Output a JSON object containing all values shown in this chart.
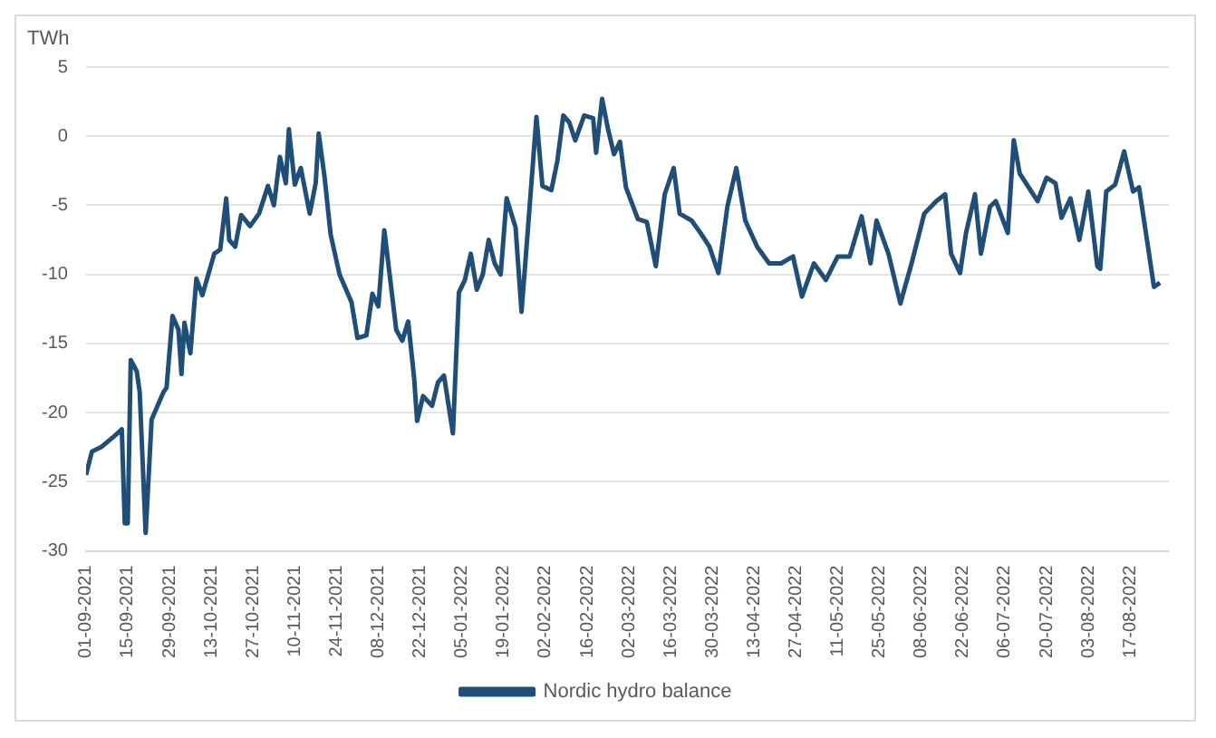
{
  "chart_data": {
    "type": "line",
    "ylabel": "TWh",
    "legend": "bottom",
    "grid": "y",
    "marker": "none",
    "line_style": "solid",
    "xlim": [
      "2021-09-01",
      "2022-08-30"
    ],
    "xticks": [
      {
        "value": "2021-09-01",
        "label": "01-09-2021"
      },
      {
        "value": "2021-09-15",
        "label": "15-09-2021"
      },
      {
        "value": "2021-09-29",
        "label": "29-09-2021"
      },
      {
        "value": "2021-10-13",
        "label": "13-10-2021"
      },
      {
        "value": "2021-10-27",
        "label": "27-10-2021"
      },
      {
        "value": "2021-11-10",
        "label": "10-11-2021"
      },
      {
        "value": "2021-11-24",
        "label": "24-11-2021"
      },
      {
        "value": "2021-12-08",
        "label": "08-12-2021"
      },
      {
        "value": "2021-12-22",
        "label": "22-12-2021"
      },
      {
        "value": "2022-01-05",
        "label": "05-01-2022"
      },
      {
        "value": "2022-01-19",
        "label": "19-01-2022"
      },
      {
        "value": "2022-02-02",
        "label": "02-02-2022"
      },
      {
        "value": "2022-02-16",
        "label": "16-02-2022"
      },
      {
        "value": "2022-03-02",
        "label": "02-03-2022"
      },
      {
        "value": "2022-03-16",
        "label": "16-03-2022"
      },
      {
        "value": "2022-03-30",
        "label": "30-03-2022"
      },
      {
        "value": "2022-04-13",
        "label": "13-04-2022"
      },
      {
        "value": "2022-04-27",
        "label": "27-04-2022"
      },
      {
        "value": "2022-05-11",
        "label": "11-05-2022"
      },
      {
        "value": "2022-05-25",
        "label": "25-05-2022"
      },
      {
        "value": "2022-06-08",
        "label": "08-06-2022"
      },
      {
        "value": "2022-06-22",
        "label": "22-06-2022"
      },
      {
        "value": "2022-07-06",
        "label": "06-07-2022"
      },
      {
        "value": "2022-07-20",
        "label": "20-07-2022"
      },
      {
        "value": "2022-08-03",
        "label": "03-08-2022"
      },
      {
        "value": "2022-08-17",
        "label": "17-08-2022"
      }
    ],
    "ylim": [
      -30,
      5
    ],
    "yticks": [
      -30,
      -25,
      -20,
      -15,
      -10,
      -5,
      0,
      5
    ],
    "x": [
      "2021-09-01",
      "2021-09-03",
      "2021-09-06",
      "2021-09-11",
      "2021-09-13",
      "2021-09-14",
      "2021-09-15",
      "2021-09-16",
      "2021-09-18",
      "2021-09-19",
      "2021-09-21",
      "2021-09-23",
      "2021-09-25",
      "2021-09-27",
      "2021-09-28",
      "2021-09-30",
      "2021-10-02",
      "2021-10-03",
      "2021-10-04",
      "2021-10-06",
      "2021-10-08",
      "2021-10-10",
      "2021-10-12",
      "2021-10-14",
      "2021-10-16",
      "2021-10-18",
      "2021-10-19",
      "2021-10-21",
      "2021-10-23",
      "2021-10-26",
      "2021-10-29",
      "2021-11-01",
      "2021-11-03",
      "2021-11-05",
      "2021-11-07",
      "2021-11-08",
      "2021-11-10",
      "2021-11-12",
      "2021-11-15",
      "2021-11-17",
      "2021-11-18",
      "2021-11-20",
      "2021-11-22",
      "2021-11-25",
      "2021-11-27",
      "2021-11-29",
      "2021-12-01",
      "2021-12-04",
      "2021-12-06",
      "2021-12-08",
      "2021-12-10",
      "2021-12-12",
      "2021-12-14",
      "2021-12-16",
      "2021-12-18",
      "2021-12-20",
      "2021-12-21",
      "2021-12-23",
      "2021-12-26",
      "2021-12-28",
      "2021-12-30",
      "2022-01-02",
      "2022-01-04",
      "2022-01-06",
      "2022-01-08",
      "2022-01-10",
      "2022-01-12",
      "2022-01-14",
      "2022-01-16",
      "2022-01-18",
      "2022-01-20",
      "2022-01-23",
      "2022-01-25",
      "2022-01-27",
      "2022-01-30",
      "2022-02-01",
      "2022-02-04",
      "2022-02-06",
      "2022-02-08",
      "2022-02-10",
      "2022-02-12",
      "2022-02-15",
      "2022-02-18",
      "2022-02-19",
      "2022-02-21",
      "2022-02-23",
      "2022-02-25",
      "2022-02-27",
      "2022-03-01",
      "2022-03-05",
      "2022-03-08",
      "2022-03-11",
      "2022-03-14",
      "2022-03-17",
      "2022-03-19",
      "2022-03-23",
      "2022-03-26",
      "2022-03-29",
      "2022-04-01",
      "2022-04-04",
      "2022-04-07",
      "2022-04-10",
      "2022-04-14",
      "2022-04-18",
      "2022-04-22",
      "2022-04-26",
      "2022-04-29",
      "2022-05-03",
      "2022-05-07",
      "2022-05-11",
      "2022-05-15",
      "2022-05-19",
      "2022-05-22",
      "2022-05-24",
      "2022-05-28",
      "2022-06-01",
      "2022-06-05",
      "2022-06-09",
      "2022-06-13",
      "2022-06-16",
      "2022-06-18",
      "2022-06-21",
      "2022-06-23",
      "2022-06-26",
      "2022-06-28",
      "2022-07-01",
      "2022-07-03",
      "2022-07-07",
      "2022-07-09",
      "2022-07-11",
      "2022-07-14",
      "2022-07-17",
      "2022-07-20",
      "2022-07-23",
      "2022-07-25",
      "2022-07-28",
      "2022-07-31",
      "2022-08-03",
      "2022-08-06",
      "2022-08-07",
      "2022-08-09",
      "2022-08-12",
      "2022-08-15",
      "2022-08-18",
      "2022-08-20",
      "2022-08-23",
      "2022-08-25",
      "2022-08-27"
    ],
    "series": [
      {
        "name": "Nordic hydro balance",
        "color": "#1f4e79",
        "values": [
          -24.5,
          -22.8,
          -22.5,
          -21.6,
          -21.2,
          -28,
          -28,
          -16.2,
          -17,
          -18.5,
          -28.7,
          -20.5,
          -19.5,
          -18.5,
          -18.2,
          -13,
          -14,
          -17.2,
          -13.5,
          -15.7,
          -10.3,
          -11.5,
          -10,
          -8.5,
          -8.2,
          -4.5,
          -7.5,
          -8,
          -5.7,
          -6.5,
          -5.6,
          -3.6,
          -5,
          -1.5,
          -3.4,
          0.5,
          -3.5,
          -2.3,
          -5.6,
          -3.4,
          0.2,
          -3,
          -7.1,
          -10,
          -11,
          -12,
          -14.6,
          -14.4,
          -11.4,
          -12.3,
          -6.8,
          -10.4,
          -14,
          -14.8,
          -13.4,
          -17.5,
          -20.6,
          -18.8,
          -19.5,
          -17.8,
          -17.3,
          -21.5,
          -11.3,
          -10.4,
          -8.5,
          -11.1,
          -10,
          -7.5,
          -9.2,
          -10,
          -4.5,
          -6.6,
          -12.7,
          -7.1,
          1.4,
          -3.6,
          -3.9,
          -1.8,
          1.5,
          1,
          -0.3,
          1.5,
          1.3,
          -1.2,
          2.7,
          0.5,
          -1.3,
          -0.4,
          -3.7,
          -6,
          -6.2,
          -9.4,
          -4.2,
          -2.3,
          -5.6,
          -6.1,
          -7,
          -8,
          -9.9,
          -5.1,
          -2.3,
          -6.1,
          -8,
          -9.2,
          -9.2,
          -8.7,
          -11.6,
          -9.2,
          -10.4,
          -8.7,
          -8.7,
          -5.8,
          -9.2,
          -6.1,
          -8.5,
          -12.1,
          -9,
          -5.6,
          -4.7,
          -4.2,
          -8.5,
          -9.9,
          -7,
          -4.2,
          -8.5,
          -5.1,
          -4.7,
          -7,
          -0.3,
          -2.7,
          -3.7,
          -4.7,
          -3,
          -3.4,
          -5.9,
          -4.5,
          -7.5,
          -4,
          -9.4,
          -9.6,
          -4,
          -3.5,
          -1.1,
          -4,
          -3.7,
          -8,
          -10.9,
          -10.6
        ]
      }
    ]
  }
}
